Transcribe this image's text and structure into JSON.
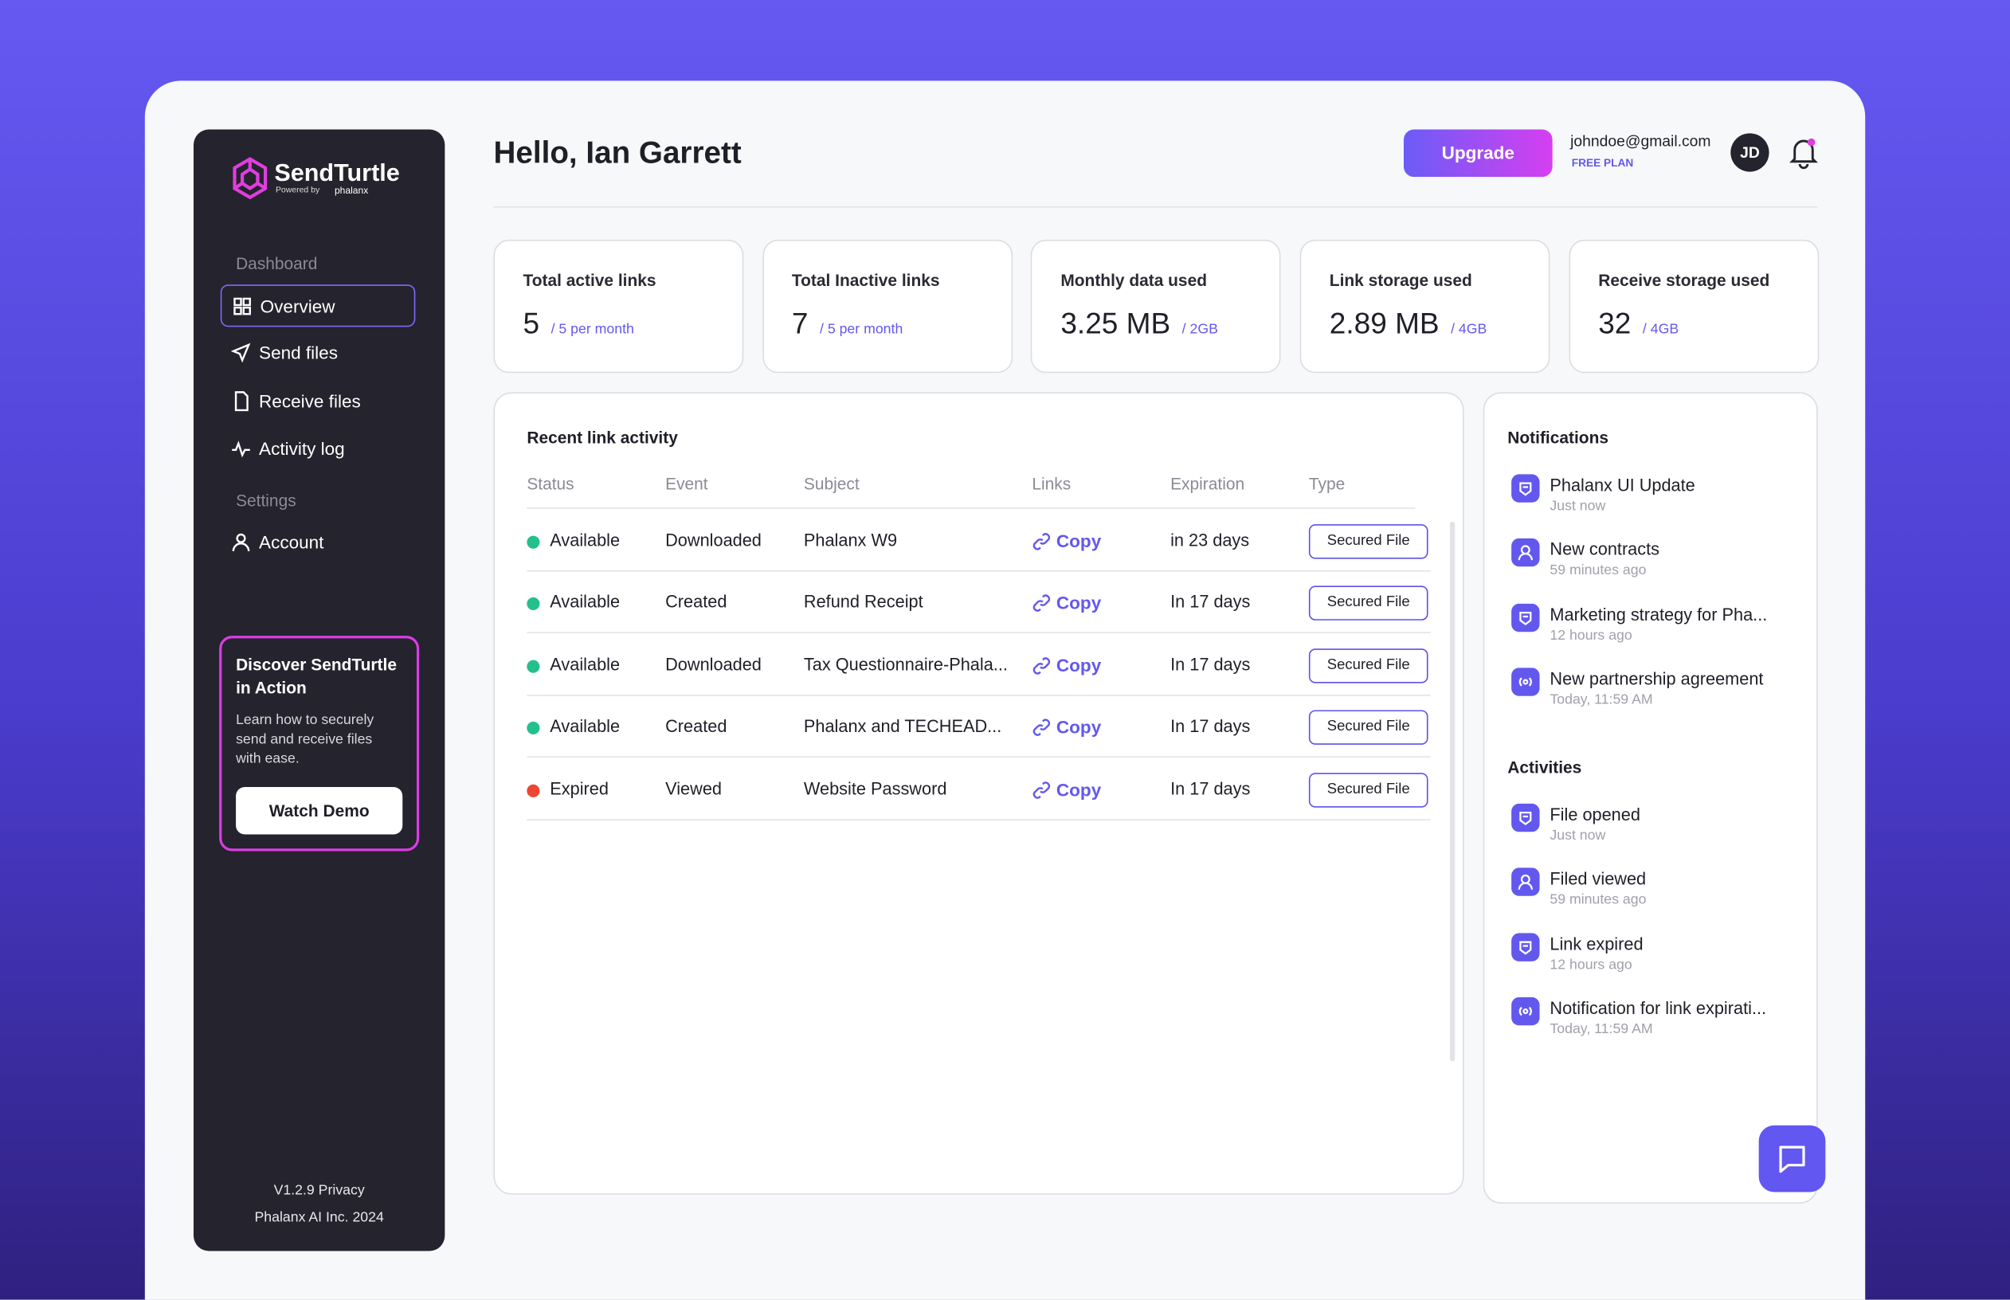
{
  "brand": {
    "name": "SendTurtle",
    "powered": "Powered by",
    "partner": "phalanx"
  },
  "nav": {
    "sections": [
      {
        "title": "Dashboard",
        "items": [
          "Overview",
          "Send files",
          "Receive files",
          "Activity log"
        ]
      },
      {
        "title": "Settings",
        "items": [
          "Account"
        ]
      }
    ]
  },
  "promo": {
    "title": "Discover SendTurtle in Action",
    "text": "Learn how to securely send and receive files with ease.",
    "button": "Watch Demo"
  },
  "footer": {
    "version": "V1.2.9 Privacy",
    "company": "Phalanx AI Inc. 2024"
  },
  "header": {
    "greeting": "Hello, Ian Garrett",
    "upgrade": "Upgrade",
    "email": "johndoe@gmail.com",
    "plan": "FREE PLAN",
    "initials": "JD"
  },
  "stats": [
    {
      "label": "Total active links",
      "value": 5,
      "limit": "/ 5 per month"
    },
    {
      "label": "Total Inactive links",
      "value": 7,
      "limit": "/ 5 per month"
    },
    {
      "label": "Monthly data used",
      "value": "3.25 MB",
      "limit": "/ 2GB"
    },
    {
      "label": "Link storage used",
      "value": "2.89 MB",
      "limit": "/ 4GB"
    },
    {
      "label": "Receive storage used",
      "value": 32,
      "limit": "/ 4GB"
    }
  ],
  "activity": {
    "title": "Recent link activity",
    "columns": [
      "Status",
      "Event",
      "Subject",
      "Links",
      "Expiration",
      "Type"
    ],
    "rows": [
      [
        "Available",
        "Downloaded",
        "Phalanx W9",
        "Copy",
        "in 23 days",
        "Secured File"
      ],
      [
        "Available",
        "Created",
        "Refund Receipt",
        "Copy",
        "In 17 days",
        "Secured File"
      ],
      [
        "Available",
        "Downloaded",
        "Tax Questionnaire-Phala...",
        "Copy",
        "In 17 days",
        "Secured File"
      ],
      [
        "Available",
        "Created",
        "Phalanx and TECHEAD...",
        "Copy",
        "In 17 days",
        "Secured File"
      ],
      [
        "Expired",
        "Viewed",
        "Website Password",
        "Copy",
        "In 17 days",
        "Secured File"
      ]
    ]
  },
  "notifications": {
    "title": "Notifications",
    "items": [
      {
        "title": "Phalanx UI Update",
        "time": "Just now"
      },
      {
        "title": "New contracts",
        "time": "59 minutes ago"
      },
      {
        "title": "Marketing strategy for Pha...",
        "time": "12 hours ago"
      },
      {
        "title": "New partnership agreement",
        "time": "Today, 11:59 AM"
      }
    ]
  },
  "activities": {
    "title": "Activities",
    "items": [
      {
        "title": "File opened",
        "time": "Just now"
      },
      {
        "title": "Filed viewed",
        "time": "59 minutes ago"
      },
      {
        "title": "Link expired",
        "time": "12 hours ago"
      },
      {
        "title": "Notification for link expirati...",
        "time": "Today, 11:59 AM"
      }
    ]
  }
}
